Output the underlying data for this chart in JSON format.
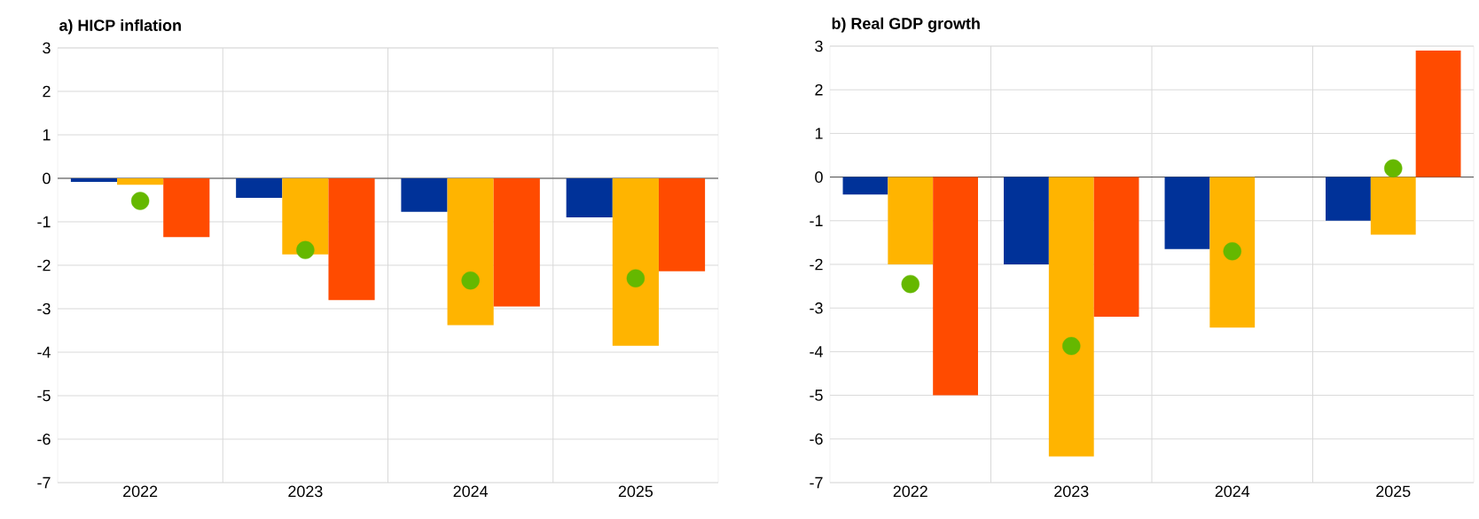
{
  "chart_data": [
    {
      "type": "bar",
      "title": "a) HICP inflation",
      "categories": [
        "2022",
        "2023",
        "2024",
        "2025"
      ],
      "series": [
        {
          "color": "#003299",
          "values": [
            -0.08,
            -0.45,
            -0.77,
            -0.9
          ]
        },
        {
          "color": "#ffb400",
          "values": [
            -0.15,
            -1.75,
            -3.38,
            -3.85
          ]
        },
        {
          "color": "#ff4b00",
          "values": [
            -1.35,
            -2.8,
            -2.95,
            -2.14
          ]
        },
        {
          "type": "scatter",
          "marker": "circle",
          "color": "#65b800",
          "values": [
            -0.52,
            -1.65,
            -2.35,
            -2.3
          ]
        }
      ],
      "ylim": [
        -7,
        3
      ],
      "yticks": [
        -7,
        -6,
        -5,
        -4,
        -3,
        -2,
        -1,
        0,
        1,
        2,
        3
      ],
      "grid": true
    },
    {
      "type": "bar",
      "title": "b) Real GDP growth",
      "categories": [
        "2022",
        "2023",
        "2024",
        "2025"
      ],
      "series": [
        {
          "color": "#003299",
          "values": [
            -0.4,
            -2.0,
            -1.65,
            -1.0
          ]
        },
        {
          "color": "#ffb400",
          "values": [
            -2.0,
            -6.4,
            -3.45,
            -1.32
          ]
        },
        {
          "color": "#ff4b00",
          "values": [
            -5.0,
            -3.2,
            null,
            2.9
          ]
        },
        {
          "type": "scatter",
          "marker": "circle",
          "color": "#65b800",
          "values": [
            -2.45,
            -3.87,
            -1.7,
            0.2
          ]
        }
      ],
      "ylim": [
        -7,
        3
      ],
      "yticks": [
        -7,
        -6,
        -5,
        -4,
        -3,
        -2,
        -1,
        0,
        1,
        2,
        3
      ],
      "grid": true
    }
  ]
}
